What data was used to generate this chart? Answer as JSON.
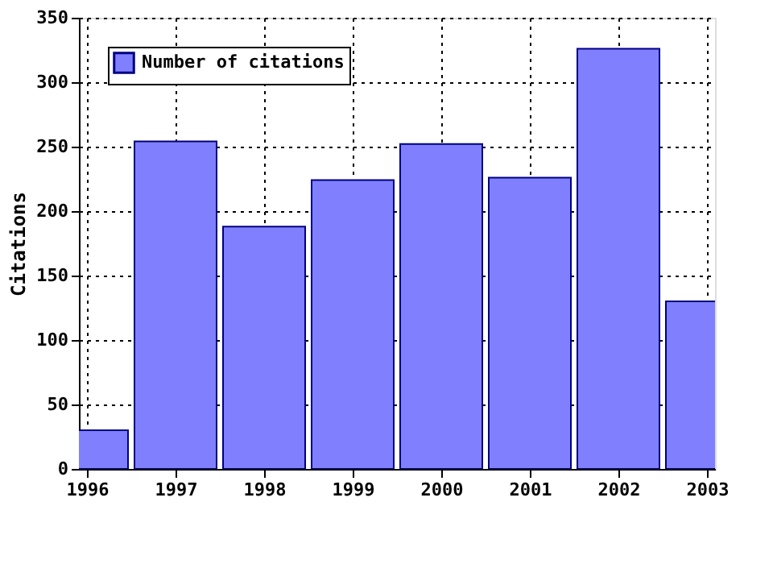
{
  "chart_data": {
    "type": "bar",
    "ylabel": "Citations",
    "x": [
      1996,
      1997,
      1998,
      1999,
      2000,
      2001,
      2002,
      2003
    ],
    "series": [
      {
        "name": "Number of citations",
        "color": "#8080ff",
        "values": [
          30,
          254,
          188,
          224,
          252,
          226,
          326,
          130
        ]
      }
    ],
    "xlim": [
      1996,
      2003
    ],
    "xticks": [
      1996,
      1997,
      1998,
      1999,
      2000,
      2001,
      2002,
      2003
    ],
    "ylim": [
      0,
      350
    ],
    "yticks": [
      0,
      50,
      100,
      150,
      200,
      250,
      300,
      350
    ],
    "grid": true,
    "legend": "top left"
  }
}
